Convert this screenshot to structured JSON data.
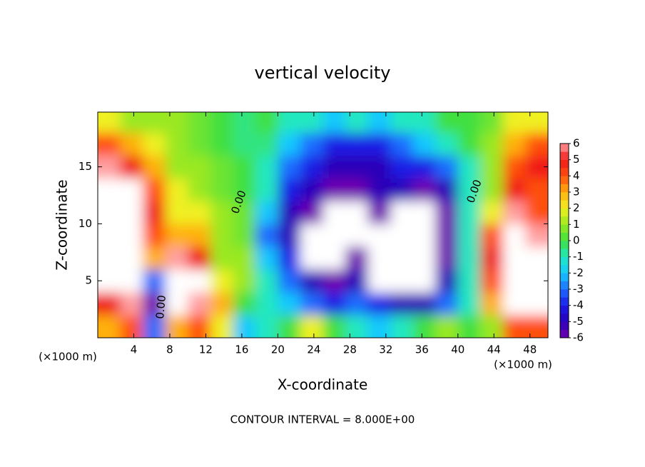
{
  "chart_data": {
    "type": "heatmap",
    "title": "vertical velocity",
    "x_label": "X-coordinate",
    "y_label": "Z-coordinate",
    "x_unit_left": "(×1000 m)",
    "x_unit_right": "(×1000 m)",
    "note": "CONTOUR INTERVAL = 8.000E+00",
    "contour_labels": [
      "0.00",
      "0.00",
      "0.00"
    ],
    "x": [
      1.25,
      3.75,
      6.25,
      8.75,
      11.25,
      13.75,
      16.25,
      18.75,
      21.25,
      23.75,
      26.25,
      28.75,
      31.25,
      33.75,
      36.25,
      38.75,
      41.25,
      43.75,
      46.25,
      48.75
    ],
    "y": [
      1,
      3,
      5,
      7,
      9,
      11,
      13,
      15,
      17,
      19
    ],
    "z": [
      [
        3,
        4,
        -3,
        3,
        4,
        2,
        -2,
        -1,
        0,
        2,
        0,
        -1,
        -2,
        -1,
        0,
        1,
        0,
        1,
        4,
        4
      ],
      [
        5,
        6,
        -6,
        8,
        6,
        3,
        0,
        -1,
        -2,
        -3,
        -4,
        -3,
        -4,
        -5,
        -5,
        -3,
        -1,
        3,
        8,
        7
      ],
      [
        8,
        8,
        -3,
        8,
        7,
        2,
        1,
        -1,
        -3,
        -5,
        -6,
        -5,
        -8,
        -8,
        -8,
        -5,
        -1,
        4,
        8,
        8
      ],
      [
        8,
        8,
        3,
        6,
        5,
        1,
        1,
        -2,
        -4,
        -8,
        -8,
        -6,
        -8,
        -8,
        -8,
        -6,
        -1,
        5,
        8,
        8
      ],
      [
        8,
        8,
        4,
        3,
        3,
        1,
        0.5,
        -3,
        -5,
        -8,
        -8,
        -8,
        -8,
        -8,
        -8,
        -6,
        -1,
        4,
        8,
        6
      ],
      [
        8,
        8,
        5,
        2,
        2,
        1,
        0.5,
        -2,
        -5,
        -6,
        -8,
        -8,
        -6,
        -8,
        -8,
        -6,
        -1,
        2,
        6,
        4
      ],
      [
        8,
        8,
        4,
        2,
        1,
        0.5,
        0,
        -1,
        -4,
        -5,
        -6,
        -6,
        -5,
        -5,
        -6,
        -5,
        -1,
        1,
        5,
        4
      ],
      [
        6,
        5,
        3,
        1,
        1,
        0.5,
        0,
        -1,
        -3,
        -4,
        -5,
        -5,
        -5,
        -4,
        -4,
        -3,
        -1,
        1,
        4,
        5
      ],
      [
        4,
        3,
        2,
        1,
        0.5,
        0,
        -0.5,
        -0.5,
        -2,
        -3,
        -4,
        -4,
        -4,
        -3,
        -2,
        -1,
        0,
        1,
        3,
        4
      ],
      [
        2,
        1,
        1,
        1,
        0.5,
        0,
        -0.5,
        0,
        -1,
        -1,
        -2,
        -1,
        -2,
        -1,
        -1,
        0,
        0,
        0.5,
        2,
        2
      ]
    ],
    "xlim": [
      0,
      50
    ],
    "ylim": [
      0,
      19.8
    ],
    "xticks": [
      4,
      8,
      12,
      16,
      20,
      24,
      28,
      32,
      36,
      40,
      44,
      48
    ],
    "yticks": [
      5,
      10,
      15
    ],
    "clim": [
      -6,
      6
    ],
    "cticks": [
      -6,
      -5,
      -4,
      -3,
      -2,
      -1,
      0,
      1,
      2,
      3,
      4,
      5,
      6
    ],
    "colorscale": [
      "#7000b0",
      "#2a00b8",
      "#1a1ae6",
      "#1e6cff",
      "#18c8ff",
      "#20e8c0",
      "#40e040",
      "#9ae820",
      "#f0f020",
      "#ffb010",
      "#ff5010",
      "#f01818",
      "#ff9fa0"
    ],
    "out_of_range_color": "#ffffff"
  }
}
